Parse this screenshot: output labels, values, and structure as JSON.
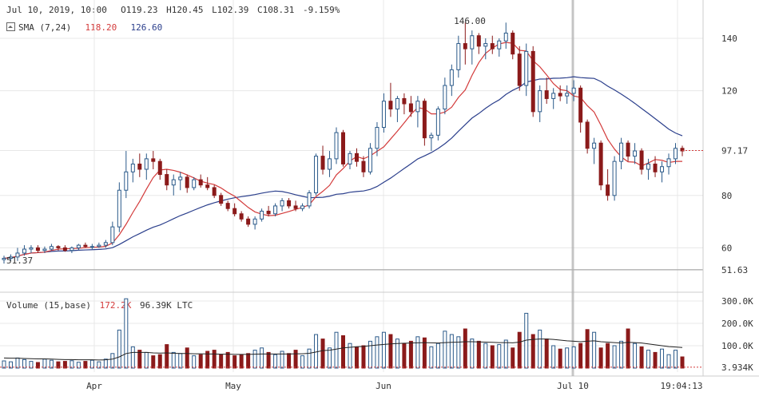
{
  "header": {
    "date": "Jul 10, 2019, 10:00",
    "open": "O119.23",
    "high": "H120.45",
    "low": "L102.39",
    "close": "C108.31",
    "change": "-9.159%",
    "sma_label": "SMA (7,24)",
    "sma_fast_value": "118.20",
    "sma_slow_value": "126.60"
  },
  "volume_header": {
    "label": "Volume (15,base)",
    "value1": "172.2K",
    "value2": "96.39K LTC"
  },
  "colors": {
    "up": "#2b5a8a",
    "down": "#8b1a1a",
    "sma_fast": "#d33b3b",
    "sma_slow": "#2b3f8c",
    "grid": "#e8e8e8",
    "crosshair": "#b0b0b0"
  },
  "chart_data": {
    "type": "candlestick",
    "price_axis_ticks": [
      "140",
      "120",
      "80",
      "60"
    ],
    "price_markers": {
      "last": "97.17",
      "low_line": "51.63",
      "peak_label": "146.00",
      "low_label": "51.37"
    },
    "volume_axis_ticks": [
      "300.0K",
      "200.0K",
      "100.0K",
      "3.934K"
    ],
    "x_ticks": [
      "Apr",
      "May",
      "Jun",
      "Jul 10",
      "19:04:13"
    ],
    "ylim": [
      50,
      150
    ],
    "volume_ylim": [
      0,
      320000
    ],
    "ohlc": [
      [
        55.5,
        57,
        54,
        56
      ],
      [
        56,
        57.5,
        55,
        56.5
      ],
      [
        56.5,
        60,
        55,
        58
      ],
      [
        58,
        61,
        57,
        59.5
      ],
      [
        59.5,
        61,
        58,
        60
      ],
      [
        60,
        61,
        58,
        59
      ],
      [
        59,
        60.5,
        58,
        59.5
      ],
      [
        59.5,
        61.5,
        59,
        60.5
      ],
      [
        60.5,
        61,
        59,
        60
      ],
      [
        60,
        61,
        58.5,
        59
      ],
      [
        59,
        60.5,
        58,
        60
      ],
      [
        60,
        61.5,
        59,
        61
      ],
      [
        61,
        62,
        60,
        60.5
      ],
      [
        60.5,
        61.5,
        59.5,
        60.5
      ],
      [
        60.5,
        62,
        60,
        61
      ],
      [
        61,
        63,
        60,
        62
      ],
      [
        62,
        70,
        61,
        68
      ],
      [
        68,
        85,
        66,
        82
      ],
      [
        82,
        97,
        79,
        89
      ],
      [
        89,
        94,
        85,
        92
      ],
      [
        92,
        96,
        87,
        90
      ],
      [
        90,
        96,
        86,
        94
      ],
      [
        94,
        97,
        90,
        93
      ],
      [
        93,
        94,
        86,
        88
      ],
      [
        88,
        90,
        82,
        84
      ],
      [
        84,
        88,
        80,
        86
      ],
      [
        86,
        89,
        82,
        87
      ],
      [
        87,
        88,
        81,
        83
      ],
      [
        83,
        87,
        82,
        86
      ],
      [
        86,
        88,
        83,
        84
      ],
      [
        84,
        87,
        82,
        83
      ],
      [
        83,
        84,
        79,
        80
      ],
      [
        80,
        81,
        76,
        77
      ],
      [
        77,
        78,
        74,
        75
      ],
      [
        75,
        77,
        72,
        73
      ],
      [
        73,
        74,
        70,
        71
      ],
      [
        71,
        72,
        68,
        69
      ],
      [
        69,
        72,
        67,
        71
      ],
      [
        71,
        75,
        70,
        74
      ],
      [
        74,
        76,
        72,
        73
      ],
      [
        73,
        77,
        72,
        76
      ],
      [
        76,
        79,
        74,
        78
      ],
      [
        78,
        79,
        75,
        76
      ],
      [
        76,
        78,
        74,
        75
      ],
      [
        75,
        77,
        74,
        76
      ],
      [
        76,
        82,
        75,
        81
      ],
      [
        81,
        96,
        80,
        95
      ],
      [
        95,
        99,
        88,
        90
      ],
      [
        90,
        97,
        87,
        94
      ],
      [
        94,
        106,
        92,
        104
      ],
      [
        104,
        105,
        91,
        92
      ],
      [
        92,
        97,
        90,
        96
      ],
      [
        96,
        98,
        91,
        93
      ],
      [
        93,
        95,
        87,
        89
      ],
      [
        89,
        100,
        88,
        98
      ],
      [
        98,
        108,
        95,
        106
      ],
      [
        106,
        119,
        104,
        116
      ],
      [
        116,
        123,
        110,
        113
      ],
      [
        113,
        118,
        108,
        117
      ],
      [
        117,
        119,
        111,
        115
      ],
      [
        115,
        118,
        110,
        112
      ],
      [
        112,
        118,
        106,
        116
      ],
      [
        116,
        117,
        99,
        102
      ],
      [
        102,
        104,
        97,
        103
      ],
      [
        103,
        114,
        101,
        113
      ],
      [
        113,
        125,
        111,
        122
      ],
      [
        122,
        130,
        118,
        128
      ],
      [
        128,
        141,
        125,
        138
      ],
      [
        138,
        146,
        130,
        136
      ],
      [
        136,
        143,
        130,
        141
      ],
      [
        141,
        142,
        134,
        137
      ],
      [
        137,
        140,
        132,
        138
      ],
      [
        138,
        141,
        134,
        136
      ],
      [
        136,
        140,
        133,
        139
      ],
      [
        139,
        146,
        136,
        142
      ],
      [
        142,
        143,
        132,
        134
      ],
      [
        134,
        137,
        120,
        122
      ],
      [
        122,
        138,
        118,
        135
      ],
      [
        135,
        137,
        110,
        112
      ],
      [
        112,
        122,
        108,
        120
      ],
      [
        120,
        125,
        115,
        117
      ],
      [
        117,
        121,
        113,
        119
      ],
      [
        119,
        122,
        116,
        118
      ],
      [
        118,
        122,
        115,
        119
      ],
      [
        119,
        124,
        116,
        121
      ],
      [
        121,
        122,
        104,
        108
      ],
      [
        108,
        109,
        96,
        98
      ],
      [
        98,
        102,
        92,
        100
      ],
      [
        100,
        101,
        82,
        84
      ],
      [
        84,
        90,
        78,
        80
      ],
      [
        80,
        95,
        78,
        93
      ],
      [
        93,
        102,
        90,
        100
      ],
      [
        100,
        101,
        93,
        95
      ],
      [
        95,
        100,
        92,
        97
      ],
      [
        97,
        98,
        88,
        90
      ],
      [
        90,
        94,
        86,
        92
      ],
      [
        92,
        95,
        87,
        89
      ],
      [
        89,
        93,
        85,
        91
      ],
      [
        91,
        96,
        88,
        94
      ],
      [
        94,
        100,
        92,
        98
      ],
      [
        98,
        99,
        95,
        97
      ]
    ],
    "volume": [
      32000,
      28000,
      45000,
      38000,
      30000,
      25000,
      40000,
      35000,
      28000,
      30000,
      33000,
      26000,
      30000,
      35000,
      28000,
      40000,
      65000,
      170000,
      310000,
      95000,
      80000,
      70000,
      55000,
      60000,
      105000,
      70000,
      65000,
      90000,
      55000,
      60000,
      75000,
      80000,
      60000,
      70000,
      55000,
      60000,
      65000,
      80000,
      90000,
      70000,
      60000,
      75000,
      65000,
      80000,
      55000,
      85000,
      150000,
      130000,
      90000,
      160000,
      145000,
      110000,
      95000,
      100000,
      120000,
      140000,
      160000,
      150000,
      130000,
      110000,
      120000,
      140000,
      135000,
      95000,
      110000,
      165000,
      150000,
      140000,
      175000,
      130000,
      120000,
      110000,
      100000,
      105000,
      125000,
      90000,
      160000,
      245000,
      150000,
      170000,
      130000,
      100000,
      85000,
      90000,
      95000,
      110000,
      172200,
      160000,
      90000,
      110000,
      100000,
      120000,
      175000,
      110000,
      95000,
      80000,
      70000,
      85000,
      60000,
      80000,
      50000
    ],
    "volume_avg": [
      45000,
      44000,
      44000,
      43000,
      42000,
      41000,
      41000,
      40000,
      39000,
      38000,
      38000,
      37000,
      37000,
      37000,
      36000,
      37000,
      40000,
      50000,
      65000,
      70000,
      70000,
      70000,
      68000,
      67000,
      68000,
      66000,
      65000,
      65000,
      64000,
      64000,
      63000,
      63000,
      62000,
      62000,
      61000,
      61000,
      61000,
      62000,
      63000,
      63000,
      63000,
      63000,
      63000,
      64000,
      64000,
      66000,
      72000,
      78000,
      80000,
      85000,
      90000,
      93000,
      95000,
      97000,
      100000,
      103000,
      106000,
      108000,
      110000,
      111000,
      112000,
      113000,
      114000,
      113000,
      112000,
      114000,
      115000,
      116000,
      118000,
      118000,
      117000,
      116000,
      115000,
      114000,
      114000,
      113000,
      116000,
      125000,
      128000,
      130000,
      130000,
      128000,
      125000,
      122000,
      120000,
      118000,
      120000,
      122000,
      118000,
      116000,
      114000,
      112000,
      115000,
      114000,
      112000,
      108000,
      104000,
      100000,
      96000,
      94000,
      92000
    ]
  }
}
